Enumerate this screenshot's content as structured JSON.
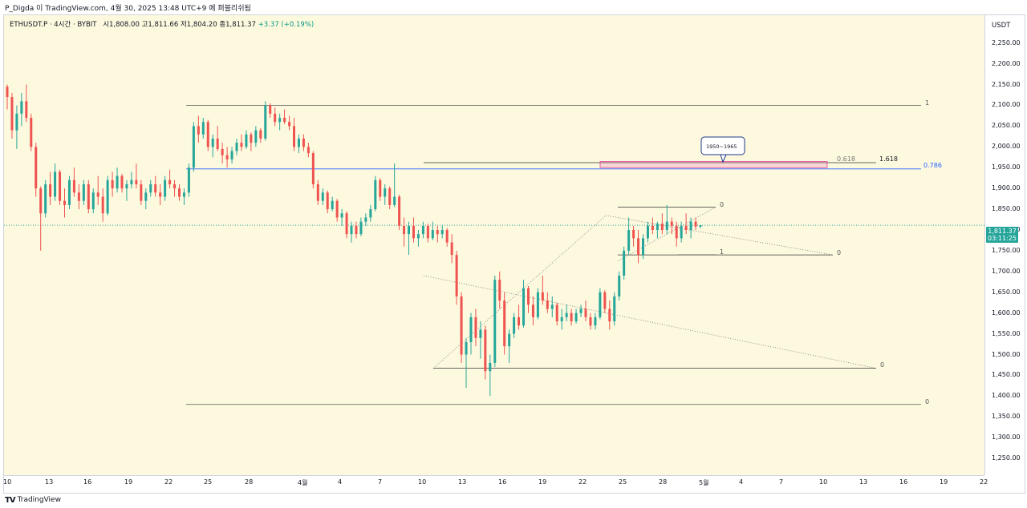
{
  "header": {
    "attribution": "P_Digda 이 TradingView.com, 4월 30, 2025 13:48 UTC+9 에 퍼블리쉬됨"
  },
  "legend": {
    "symbol": "ETHUSDT.P · 4시간 · BYBIT",
    "open": "시1,808.00",
    "high": "고1,811.66",
    "low": "저1,804.20",
    "close": "종1,811.37",
    "change": "+3.37 (+0.19%)"
  },
  "price_scale": {
    "unit": "USDT",
    "ticks": [
      "2,250.00",
      "2,200.00",
      "2,150.00",
      "2,100.00",
      "2,050.00",
      "2,000.00",
      "1,950.00",
      "1,900.00",
      "1,850.00",
      "1,800.00",
      "1,750.00",
      "1,700.00",
      "1,650.00",
      "1,600.00",
      "1,550.00",
      "1,500.00",
      "1,450.00",
      "1,400.00",
      "1,350.00",
      "1,300.00",
      "1,250.00"
    ],
    "last_price": "1,811.37",
    "countdown": "03:11:25"
  },
  "time_axis": {
    "ticks": [
      "10",
      "13",
      "16",
      "19",
      "22",
      "25",
      "28",
      "4월",
      "4",
      "7",
      "10",
      "13",
      "16",
      "19",
      "22",
      "25",
      "28",
      "5월",
      "4",
      "7",
      "10",
      "13",
      "16",
      "19",
      "22"
    ]
  },
  "drawings": {
    "label_1_top": "1",
    "label_0618": "0.618",
    "label_1618": "1.618",
    "label_0786": "0.786",
    "callout": "1950~1965",
    "label_0_flag": "0",
    "label_1_flag": "1",
    "label_0_wedge": "0",
    "label_0_mid": "0",
    "label_0_bottom": "0"
  },
  "colors": {
    "up": "#26a69a",
    "down": "#ef5350",
    "plot_bg": "#fdf9df",
    "fib_blue": "#2962ff",
    "zone_pink": "#e040a0"
  },
  "footer": {
    "brand": "TradingView"
  },
  "chart_data": {
    "type": "candlestick",
    "symbol": "ETHUSDT.P",
    "interval": "4시간",
    "exchange": "BYBIT",
    "ylim": [
      1230,
      2290
    ],
    "last": 1811.37,
    "candles_ohlc": [
      [
        2145,
        2150,
        2090,
        2120
      ],
      [
        2120,
        2130,
        2020,
        2040
      ],
      [
        2040,
        2100,
        1995,
        2080
      ],
      [
        2080,
        2130,
        2050,
        2110
      ],
      [
        2110,
        2150,
        2060,
        2070
      ],
      [
        2070,
        2080,
        1990,
        2000
      ],
      [
        2000,
        2010,
        1880,
        1900
      ],
      [
        1900,
        1905,
        1750,
        1840
      ],
      [
        1840,
        1920,
        1830,
        1910
      ],
      [
        1910,
        1940,
        1860,
        1880
      ],
      [
        1880,
        1960,
        1870,
        1940
      ],
      [
        1940,
        1945,
        1860,
        1870
      ],
      [
        1870,
        1900,
        1830,
        1860
      ],
      [
        1860,
        1930,
        1850,
        1920
      ],
      [
        1920,
        1950,
        1880,
        1890
      ],
      [
        1890,
        1910,
        1850,
        1870
      ],
      [
        1870,
        1920,
        1860,
        1910
      ],
      [
        1910,
        1920,
        1840,
        1850
      ],
      [
        1850,
        1900,
        1840,
        1890
      ],
      [
        1890,
        1930,
        1860,
        1880
      ],
      [
        1880,
        1900,
        1820,
        1840
      ],
      [
        1840,
        1930,
        1835,
        1920
      ],
      [
        1920,
        1940,
        1880,
        1900
      ],
      [
        1900,
        1950,
        1890,
        1930
      ],
      [
        1930,
        1935,
        1890,
        1900
      ],
      [
        1900,
        1920,
        1870,
        1910
      ],
      [
        1910,
        1940,
        1900,
        1920
      ],
      [
        1920,
        1960,
        1900,
        1910
      ],
      [
        1910,
        1920,
        1860,
        1870
      ],
      [
        1870,
        1900,
        1850,
        1890
      ],
      [
        1890,
        1920,
        1880,
        1910
      ],
      [
        1910,
        1930,
        1880,
        1890
      ],
      [
        1890,
        1910,
        1860,
        1880
      ],
      [
        1880,
        1930,
        1870,
        1920
      ],
      [
        1920,
        1945,
        1900,
        1910
      ],
      [
        1910,
        1920,
        1880,
        1900
      ],
      [
        1900,
        1910,
        1870,
        1880
      ],
      [
        1880,
        1900,
        1860,
        1890
      ],
      [
        1890,
        1960,
        1880,
        1950
      ],
      [
        1950,
        2060,
        1940,
        2050
      ],
      [
        2050,
        2075,
        2010,
        2030
      ],
      [
        2030,
        2070,
        2020,
        2060
      ],
      [
        2060,
        2065,
        1990,
        2000
      ],
      [
        2000,
        2030,
        1975,
        2020
      ],
      [
        2020,
        2050,
        1990,
        1995
      ],
      [
        1995,
        2010,
        1960,
        1980
      ],
      [
        1980,
        2000,
        1950,
        1970
      ],
      [
        1970,
        2000,
        1960,
        1990
      ],
      [
        1990,
        2020,
        1980,
        2010
      ],
      [
        2010,
        2030,
        1990,
        2000
      ],
      [
        2000,
        2040,
        1995,
        2030
      ],
      [
        2030,
        2035,
        1990,
        2010
      ],
      [
        2010,
        2050,
        2000,
        2040
      ],
      [
        2040,
        2045,
        2010,
        2020
      ],
      [
        2020,
        2110,
        2015,
        2100
      ],
      [
        2100,
        2105,
        2070,
        2080
      ],
      [
        2080,
        2095,
        2050,
        2060
      ],
      [
        2060,
        2080,
        2040,
        2070
      ],
      [
        2070,
        2090,
        2055,
        2060
      ],
      [
        2060,
        2075,
        2040,
        2050
      ],
      [
        2050,
        2070,
        1990,
        2000
      ],
      [
        2000,
        2030,
        1985,
        2020
      ],
      [
        2020,
        2030,
        1990,
        2000
      ],
      [
        2000,
        2010,
        1975,
        1985
      ],
      [
        1985,
        1990,
        1900,
        1910
      ],
      [
        1910,
        1920,
        1860,
        1870
      ],
      [
        1870,
        1900,
        1860,
        1890
      ],
      [
        1890,
        1895,
        1840,
        1850
      ],
      [
        1850,
        1880,
        1845,
        1870
      ],
      [
        1870,
        1875,
        1820,
        1830
      ],
      [
        1830,
        1850,
        1810,
        1840
      ],
      [
        1840,
        1845,
        1780,
        1790
      ],
      [
        1790,
        1820,
        1770,
        1810
      ],
      [
        1810,
        1820,
        1780,
        1790
      ],
      [
        1790,
        1830,
        1785,
        1820
      ],
      [
        1820,
        1840,
        1810,
        1830
      ],
      [
        1830,
        1860,
        1820,
        1850
      ],
      [
        1850,
        1930,
        1845,
        1920
      ],
      [
        1920,
        1925,
        1870,
        1880
      ],
      [
        1880,
        1910,
        1860,
        1900
      ],
      [
        1900,
        1905,
        1850,
        1860
      ],
      [
        1860,
        1960,
        1855,
        1880
      ],
      [
        1880,
        1885,
        1800,
        1810
      ],
      [
        1810,
        1830,
        1760,
        1790
      ],
      [
        1790,
        1820,
        1740,
        1810
      ],
      [
        1810,
        1830,
        1770,
        1780
      ],
      [
        1780,
        1800,
        1760,
        1790
      ],
      [
        1790,
        1820,
        1780,
        1810
      ],
      [
        1810,
        1815,
        1770,
        1780
      ],
      [
        1780,
        1820,
        1775,
        1800
      ],
      [
        1800,
        1810,
        1770,
        1790
      ],
      [
        1790,
        1810,
        1780,
        1800
      ],
      [
        1800,
        1805,
        1760,
        1770
      ],
      [
        1770,
        1790,
        1720,
        1740
      ],
      [
        1740,
        1750,
        1620,
        1640
      ],
      [
        1640,
        1650,
        1480,
        1500
      ],
      [
        1500,
        1540,
        1420,
        1530
      ],
      [
        1530,
        1600,
        1500,
        1590
      ],
      [
        1590,
        1610,
        1520,
        1540
      ],
      [
        1540,
        1580,
        1490,
        1560
      ],
      [
        1560,
        1570,
        1440,
        1460
      ],
      [
        1460,
        1500,
        1400,
        1480
      ],
      [
        1480,
        1690,
        1470,
        1680
      ],
      [
        1680,
        1700,
        1610,
        1630
      ],
      [
        1630,
        1650,
        1500,
        1520
      ],
      [
        1520,
        1560,
        1480,
        1550
      ],
      [
        1550,
        1600,
        1540,
        1590
      ],
      [
        1590,
        1620,
        1560,
        1570
      ],
      [
        1570,
        1680,
        1565,
        1660
      ],
      [
        1660,
        1665,
        1600,
        1620
      ],
      [
        1620,
        1640,
        1570,
        1590
      ],
      [
        1590,
        1660,
        1585,
        1650
      ],
      [
        1650,
        1690,
        1620,
        1630
      ],
      [
        1630,
        1650,
        1600,
        1610
      ],
      [
        1610,
        1640,
        1590,
        1620
      ],
      [
        1620,
        1625,
        1570,
        1580
      ],
      [
        1580,
        1610,
        1560,
        1590
      ],
      [
        1590,
        1620,
        1580,
        1600
      ],
      [
        1600,
        1610,
        1570,
        1580
      ],
      [
        1580,
        1610,
        1575,
        1600
      ],
      [
        1600,
        1620,
        1590,
        1610
      ],
      [
        1610,
        1630,
        1580,
        1590
      ],
      [
        1590,
        1600,
        1560,
        1570
      ],
      [
        1570,
        1600,
        1560,
        1590
      ],
      [
        1590,
        1660,
        1585,
        1650
      ],
      [
        1650,
        1655,
        1600,
        1610
      ],
      [
        1610,
        1630,
        1560,
        1580
      ],
      [
        1580,
        1650,
        1570,
        1640
      ],
      [
        1640,
        1700,
        1630,
        1690
      ],
      [
        1690,
        1760,
        1680,
        1750
      ],
      [
        1750,
        1830,
        1740,
        1800
      ],
      [
        1800,
        1810,
        1760,
        1780
      ],
      [
        1780,
        1800,
        1720,
        1740
      ],
      [
        1740,
        1790,
        1730,
        1780
      ],
      [
        1780,
        1820,
        1770,
        1810
      ],
      [
        1810,
        1830,
        1790,
        1800
      ],
      [
        1800,
        1820,
        1780,
        1815
      ],
      [
        1815,
        1840,
        1790,
        1800
      ],
      [
        1800,
        1860,
        1790,
        1820
      ],
      [
        1820,
        1830,
        1790,
        1810
      ],
      [
        1810,
        1820,
        1760,
        1780
      ],
      [
        1780,
        1820,
        1770,
        1810
      ],
      [
        1810,
        1840,
        1790,
        1800
      ],
      [
        1800,
        1830,
        1780,
        1820
      ],
      [
        1820,
        1830,
        1800,
        1808
      ],
      [
        1808,
        1811.66,
        1804.2,
        1811.37
      ]
    ]
  }
}
